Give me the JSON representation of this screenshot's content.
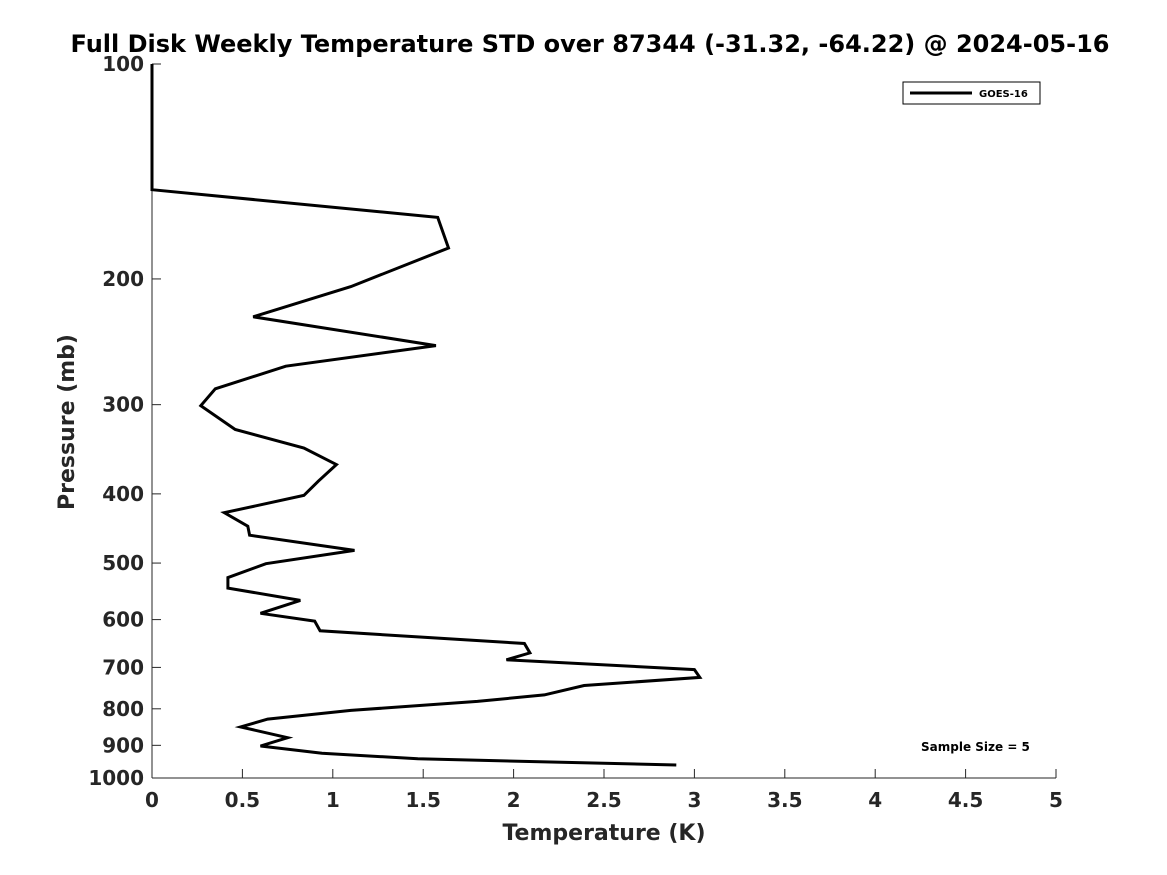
{
  "chart_data": {
    "type": "line",
    "title": "Full Disk Weekly Temperature STD over 87344 (-31.32, -64.22) @ 2024-05-16",
    "xlabel": "Temperature (K)",
    "ylabel": "Pressure (mb)",
    "xlim": [
      0,
      5
    ],
    "ylim": [
      100,
      1000
    ],
    "y_scale": "log",
    "y_reversed": true,
    "x_ticks": [
      "0",
      "0.5",
      "1",
      "1.5",
      "2",
      "2.5",
      "3",
      "3.5",
      "4",
      "4.5",
      "5"
    ],
    "y_ticks": [
      "100",
      "200",
      "300",
      "400",
      "500",
      "600",
      "700",
      "800",
      "900",
      "1000"
    ],
    "grid": false,
    "legend": {
      "placement": "top-right",
      "entries": [
        "GOES-16"
      ]
    },
    "annotation": "Sample Size = 5",
    "series": [
      {
        "name": "GOES-16",
        "color": "#000000",
        "points": [
          [
            0,
            100
          ],
          [
            0,
            150
          ],
          [
            1.58,
            164
          ],
          [
            1.64,
            181
          ],
          [
            1.1,
            205
          ],
          [
            0.56,
            226
          ],
          [
            1.57,
            248
          ],
          [
            0.74,
            265
          ],
          [
            0.35,
            285
          ],
          [
            0.27,
            301
          ],
          [
            0.46,
            325
          ],
          [
            0.84,
            345
          ],
          [
            1.02,
            364
          ],
          [
            0.92,
            384
          ],
          [
            0.84,
            402
          ],
          [
            0.4,
            425
          ],
          [
            0.53,
            444
          ],
          [
            0.54,
            457
          ],
          [
            1.12,
            480
          ],
          [
            0.63,
            501
          ],
          [
            0.42,
            524
          ],
          [
            0.42,
            542
          ],
          [
            0.82,
            564
          ],
          [
            0.6,
            588
          ],
          [
            0.9,
            603
          ],
          [
            0.93,
            622
          ],
          [
            2.06,
            648
          ],
          [
            2.09,
            668
          ],
          [
            1.96,
            683
          ],
          [
            3,
            705
          ],
          [
            3.03,
            723
          ],
          [
            2.39,
            742
          ],
          [
            2.17,
            765
          ],
          [
            1.8,
            781
          ],
          [
            1.1,
            804
          ],
          [
            0.64,
            827
          ],
          [
            0.49,
            848
          ],
          [
            0.75,
            878
          ],
          [
            0.6,
            902
          ],
          [
            0.94,
            923
          ],
          [
            1.47,
            940
          ],
          [
            2.9,
            959
          ]
        ]
      }
    ]
  }
}
